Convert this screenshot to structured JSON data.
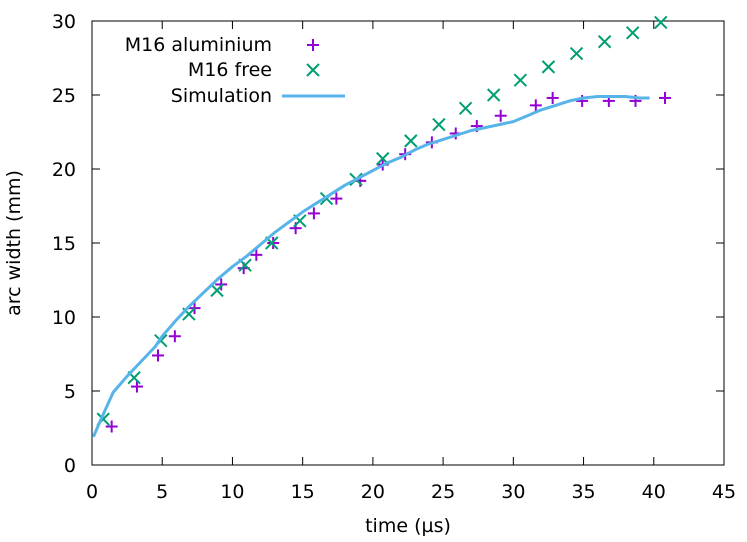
{
  "chart_data": {
    "type": "scatter",
    "title": "",
    "xlabel": "time (µs)",
    "ylabel": "arc width (mm)",
    "xlim": [
      0,
      45
    ],
    "ylim": [
      0,
      30
    ],
    "xticks": [
      0,
      5,
      10,
      15,
      20,
      25,
      30,
      35,
      40,
      45
    ],
    "yticks": [
      0,
      5,
      10,
      15,
      20,
      25,
      30
    ],
    "grid": false,
    "legend_position": "top-left",
    "series": [
      {
        "name": "M16 aluminium",
        "marker": "plus",
        "color": "#9400d3",
        "x": [
          1.4,
          3.2,
          4.7,
          5.9,
          7.3,
          9.2,
          10.8,
          11.7,
          12.9,
          14.5,
          15.8,
          17.4,
          19.1,
          20.7,
          22.3,
          24.2,
          25.9,
          27.4,
          29.1,
          31.6,
          32.8,
          34.9,
          36.8,
          38.7,
          40.8
        ],
        "y": [
          2.6,
          5.3,
          7.4,
          8.7,
          10.6,
          12.2,
          13.3,
          14.2,
          15.0,
          16.0,
          17.0,
          18.0,
          19.2,
          20.3,
          21.0,
          21.8,
          22.4,
          22.9,
          23.6,
          24.3,
          24.8,
          24.6,
          24.6,
          24.6,
          24.8
        ]
      },
      {
        "name": "M16 free",
        "marker": "cross",
        "color": "#009e73",
        "x": [
          0.8,
          3.0,
          4.9,
          6.9,
          8.9,
          10.9,
          12.8,
          14.8,
          16.7,
          18.8,
          20.7,
          22.7,
          24.7,
          26.6,
          28.6,
          30.5,
          32.5,
          34.5,
          36.5,
          38.5,
          40.5
        ],
        "y": [
          3.1,
          5.9,
          8.4,
          10.2,
          11.8,
          13.5,
          15.0,
          16.5,
          18.0,
          19.3,
          20.7,
          21.9,
          23.0,
          24.1,
          25.0,
          26.0,
          26.9,
          27.8,
          28.6,
          29.2,
          29.9
        ]
      },
      {
        "name": "Simulation",
        "marker": "line",
        "color": "#56b4e9",
        "x": [
          0.1,
          0.6,
          1.5,
          2.5,
          3.5,
          4.5,
          5.0,
          6.0,
          7.0,
          8.0,
          9.0,
          10.0,
          11.0,
          12.0,
          13.0,
          14.0,
          15.0,
          16.0,
          17.0,
          18.0,
          19.0,
          20.0,
          21.0,
          22.0,
          23.0,
          24.0,
          25.0,
          26.0,
          27.0,
          28.0,
          29.0,
          30.0,
          31.0,
          32.0,
          33.0,
          34.0,
          35.0,
          36.0,
          37.0,
          38.0,
          39.0,
          39.7
        ],
        "y": [
          1.9,
          3.0,
          4.9,
          6.0,
          7.0,
          8.0,
          8.7,
          9.8,
          10.8,
          11.7,
          12.6,
          13.4,
          14.1,
          14.9,
          15.7,
          16.4,
          17.1,
          17.7,
          18.3,
          18.9,
          19.4,
          19.9,
          20.4,
          20.8,
          21.3,
          21.7,
          22.0,
          22.3,
          22.6,
          22.8,
          23.0,
          23.2,
          23.6,
          24.0,
          24.3,
          24.6,
          24.8,
          24.9,
          24.9,
          24.9,
          24.8,
          24.8
        ]
      }
    ]
  }
}
